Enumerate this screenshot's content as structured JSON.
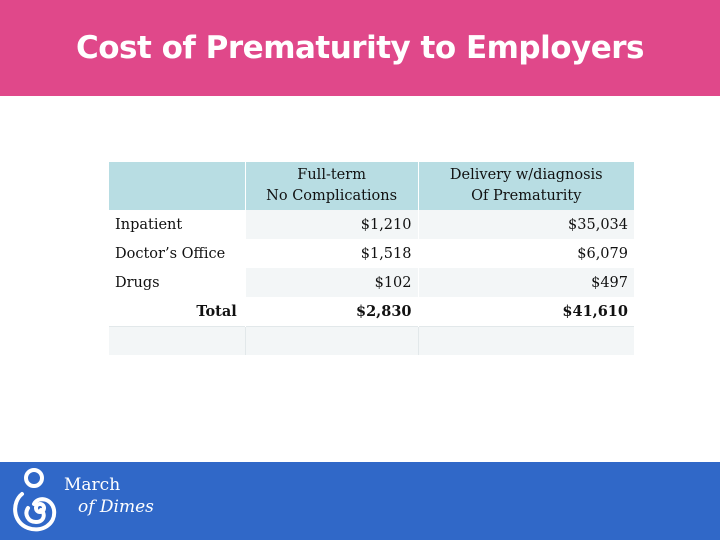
{
  "slide": {
    "title": "Cost of Prematurity to Employers"
  },
  "table": {
    "headers": {
      "col2_line1": "Full-term",
      "col2_line2": "No Complications",
      "col3_line1": "Delivery w/diagnosis",
      "col3_line2": "Of Prematurity"
    },
    "rows": [
      {
        "label": "Inpatient",
        "full_term": "$1,210",
        "premature": "$35,034"
      },
      {
        "label": "Doctor’s Office",
        "full_term": "$1,518",
        "premature": "$6,079"
      },
      {
        "label": "Drugs",
        "full_term": "$102",
        "premature": "$497"
      }
    ],
    "total": {
      "label": "Total",
      "full_term": "$2,830",
      "premature": "$41,610"
    }
  },
  "footer": {
    "brand_line1": "March",
    "brand_line2": "of Dimes",
    "logo_icon": "mother-and-baby-icon",
    "colors": {
      "header": "#e0488a",
      "footer": "#3068c8",
      "table_header": "#b8dde3"
    }
  }
}
